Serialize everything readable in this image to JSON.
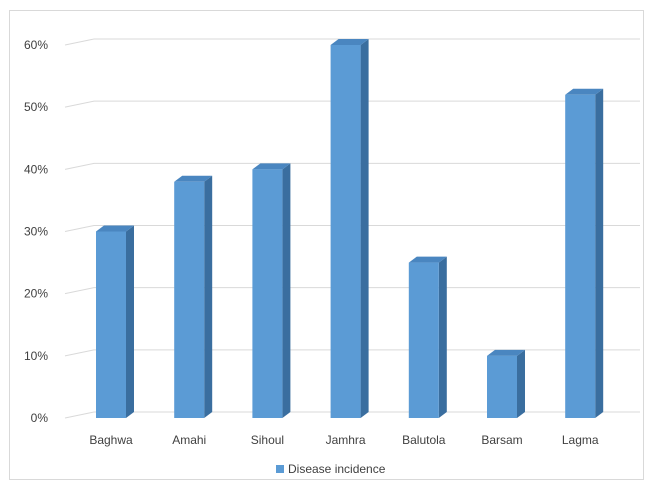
{
  "chart_data": {
    "type": "bar",
    "style": "3d-column",
    "categories": [
      "Baghwa",
      "Amahi",
      "Sihoul",
      "Jamhra",
      "Balutola",
      "Barsam",
      "Lagma"
    ],
    "series": [
      {
        "name": "Disease incidence",
        "values": [
          30,
          38,
          40,
          60,
          25,
          10,
          52
        ],
        "color": "#5b9bd5"
      }
    ],
    "y_ticks": [
      "0%",
      "10%",
      "20%",
      "30%",
      "40%",
      "50%",
      "60%"
    ],
    "ylim": [
      0,
      60
    ],
    "value_format": "percent",
    "grid": true,
    "legend_position": "bottom",
    "colors": {
      "bar_front": "#5b9bd5",
      "bar_side": "#3a6e9f",
      "bar_top": "#4a86c0",
      "grid": "#d9d9d9"
    }
  }
}
